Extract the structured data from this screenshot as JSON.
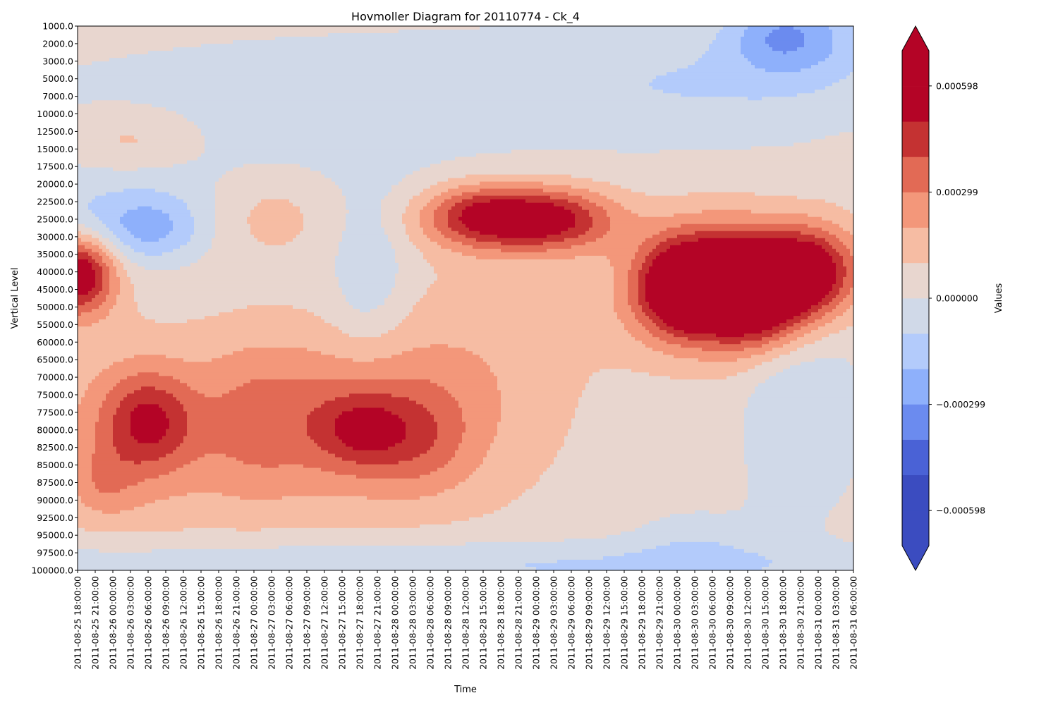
{
  "chart_data": {
    "type": "heatmap",
    "subtype": "filled-contour (Hovmoller)",
    "title": "Hovmoller Diagram for 20110774 - Ck_4",
    "xlabel": "Time",
    "ylabel": "Vertical Level",
    "colorbar_label": "Values",
    "colormap": "coolwarm",
    "grid": false,
    "y_axis_inverted": true,
    "x_ticks": [
      "2011-08-25 18:00:00",
      "2011-08-25 21:00:00",
      "2011-08-26 00:00:00",
      "2011-08-26 03:00:00",
      "2011-08-26 06:00:00",
      "2011-08-26 09:00:00",
      "2011-08-26 12:00:00",
      "2011-08-26 15:00:00",
      "2011-08-26 18:00:00",
      "2011-08-26 21:00:00",
      "2011-08-27 00:00:00",
      "2011-08-27 03:00:00",
      "2011-08-27 06:00:00",
      "2011-08-27 09:00:00",
      "2011-08-27 12:00:00",
      "2011-08-27 15:00:00",
      "2011-08-27 18:00:00",
      "2011-08-27 21:00:00",
      "2011-08-28 00:00:00",
      "2011-08-28 03:00:00",
      "2011-08-28 06:00:00",
      "2011-08-28 09:00:00",
      "2011-08-28 12:00:00",
      "2011-08-28 15:00:00",
      "2011-08-28 18:00:00",
      "2011-08-28 21:00:00",
      "2011-08-29 00:00:00",
      "2011-08-29 03:00:00",
      "2011-08-29 06:00:00",
      "2011-08-29 09:00:00",
      "2011-08-29 12:00:00",
      "2011-08-29 15:00:00",
      "2011-08-29 18:00:00",
      "2011-08-29 21:00:00",
      "2011-08-30 00:00:00",
      "2011-08-30 03:00:00",
      "2011-08-30 06:00:00",
      "2011-08-30 09:00:00",
      "2011-08-30 12:00:00",
      "2011-08-30 15:00:00",
      "2011-08-30 18:00:00",
      "2011-08-30 21:00:00",
      "2011-08-31 00:00:00",
      "2011-08-31 03:00:00",
      "2011-08-31 06:00:00"
    ],
    "y_ticks": [
      "1000.0",
      "2000.0",
      "3000.0",
      "5000.0",
      "7000.0",
      "10000.0",
      "12500.0",
      "15000.0",
      "17500.0",
      "20000.0",
      "22500.0",
      "25000.0",
      "30000.0",
      "35000.0",
      "40000.0",
      "45000.0",
      "50000.0",
      "55000.0",
      "60000.0",
      "65000.0",
      "70000.0",
      "75000.0",
      "77500.0",
      "80000.0",
      "82500.0",
      "85000.0",
      "87500.0",
      "90000.0",
      "92500.0",
      "95000.0",
      "97500.0",
      "100000.0"
    ],
    "colorbar_ticks": [
      "0.000598",
      "0.000299",
      "0.000000",
      "−0.000299",
      "−0.000598"
    ],
    "levels": [
      -0.000697,
      -0.000598,
      -0.000498,
      -0.000399,
      -0.000299,
      -0.000199,
      -0.0001,
      0.0,
      0.0001,
      0.000199,
      0.000299,
      0.000399,
      0.000498,
      0.000598,
      0.000697
    ],
    "level_colors": [
      "#4a62d6",
      "#6b8bef",
      "#8eb0fb",
      "#b3cbfb",
      "#d0d9e8",
      "#e8d6cf",
      "#f6bca3",
      "#f3977a",
      "#e26a55",
      "#c43232"
    ],
    "extend_colors": {
      "under": "#3b4cc0",
      "over": "#b40426"
    },
    "blobs": [
      {
        "t": 7.0,
        "lvl": 8.0,
        "st": 12.0,
        "sl": 3.5,
        "a": -0.00011
      },
      {
        "t": 28.0,
        "lvl": 3.0,
        "st": 18.0,
        "sl": 2.5,
        "a": -9e-05
      },
      {
        "t": 36.0,
        "lvl": 3.5,
        "st": 6.0,
        "sl": 2.5,
        "a": -7e-05
      },
      {
        "t": 39.5,
        "lvl": 0.5,
        "st": 2.0,
        "sl": 1.5,
        "a": -0.0002
      },
      {
        "t": 42.0,
        "lvl": 0.5,
        "st": 2.5,
        "sl": 1.8,
        "a": -0.00015
      },
      {
        "t": 3.0,
        "lvl": 6.5,
        "st": 3.0,
        "sl": 1.3,
        "a": 0.00016
      },
      {
        "t": 0.5,
        "lvl": 11.5,
        "st": 3.0,
        "sl": 1.5,
        "a": -0.00015
      },
      {
        "t": 4.5,
        "lvl": 11.5,
        "st": 2.0,
        "sl": 1.3,
        "a": -0.00018
      },
      {
        "t": 11.0,
        "lvl": 10.5,
        "st": 2.8,
        "sl": 2.0,
        "a": 0.00015
      },
      {
        "t": 16.5,
        "lvl": 14.5,
        "st": 1.5,
        "sl": 3.0,
        "a": -0.00014
      },
      {
        "t": 22.5,
        "lvl": 10.5,
        "st": 2.0,
        "sl": 1.2,
        "a": 0.00014
      },
      {
        "t": 24.0,
        "lvl": 11.0,
        "st": 3.2,
        "sl": 1.3,
        "a": 0.00042
      },
      {
        "t": 27.5,
        "lvl": 11.0,
        "st": 2.5,
        "sl": 1.3,
        "a": 0.00028
      },
      {
        "t": 0.0,
        "lvl": 14.0,
        "st": 1.5,
        "sl": 1.7,
        "a": 0.00062
      },
      {
        "t": 34.5,
        "lvl": 15.0,
        "st": 1.8,
        "sl": 1.8,
        "a": 0.00058
      },
      {
        "t": 38.5,
        "lvl": 15.5,
        "st": 2.0,
        "sl": 2.0,
        "a": 0.00058
      },
      {
        "t": 36.5,
        "lvl": 13.5,
        "st": 3.5,
        "sl": 2.2,
        "a": 0.0003
      },
      {
        "t": 41.5,
        "lvl": 14.0,
        "st": 2.0,
        "sl": 1.8,
        "a": 0.0005
      },
      {
        "t": 35.0,
        "lvl": 16.5,
        "st": 4.0,
        "sl": 2.2,
        "a": 0.00012
      },
      {
        "t": 40.0,
        "lvl": 21.5,
        "st": 1.7,
        "sl": 5.5,
        "a": -0.00013
      },
      {
        "t": 43.0,
        "lvl": 22.0,
        "st": 1.5,
        "sl": 4.0,
        "a": -8e-05
      },
      {
        "t": 35.0,
        "lvl": 29.5,
        "st": 2.5,
        "sl": 1.5,
        "a": -0.0001
      },
      {
        "t": 3.0,
        "lvl": 23.5,
        "st": 4.0,
        "sl": 4.0,
        "a": 0.00018
      },
      {
        "t": 4.0,
        "lvl": 22.5,
        "st": 1.8,
        "sl": 2.0,
        "a": 0.00032
      },
      {
        "t": 10.0,
        "lvl": 22.5,
        "st": 2.5,
        "sl": 3.5,
        "a": 0.00018
      },
      {
        "t": 15.5,
        "lvl": 22.5,
        "st": 4.0,
        "sl": 3.5,
        "a": 0.00024
      },
      {
        "t": 16.0,
        "lvl": 23.0,
        "st": 1.8,
        "sl": 1.5,
        "a": 0.00022
      },
      {
        "t": 19.5,
        "lvl": 23.5,
        "st": 2.2,
        "sl": 2.2,
        "a": 0.00016
      },
      {
        "t": 23.0,
        "lvl": 20.0,
        "st": 4.0,
        "sl": 5.0,
        "a": 0.00012
      },
      {
        "t": 1.5,
        "lvl": 26.0,
        "st": 1.2,
        "sl": 1.3,
        "a": 0.00012
      },
      {
        "t": 8.0,
        "lvl": 30.5,
        "st": 25.0,
        "sl": 1.0,
        "a": -0.00012
      },
      {
        "t": 30.0,
        "lvl": 31.0,
        "st": 10.0,
        "sl": 1.0,
        "a": -8e-05
      }
    ]
  }
}
